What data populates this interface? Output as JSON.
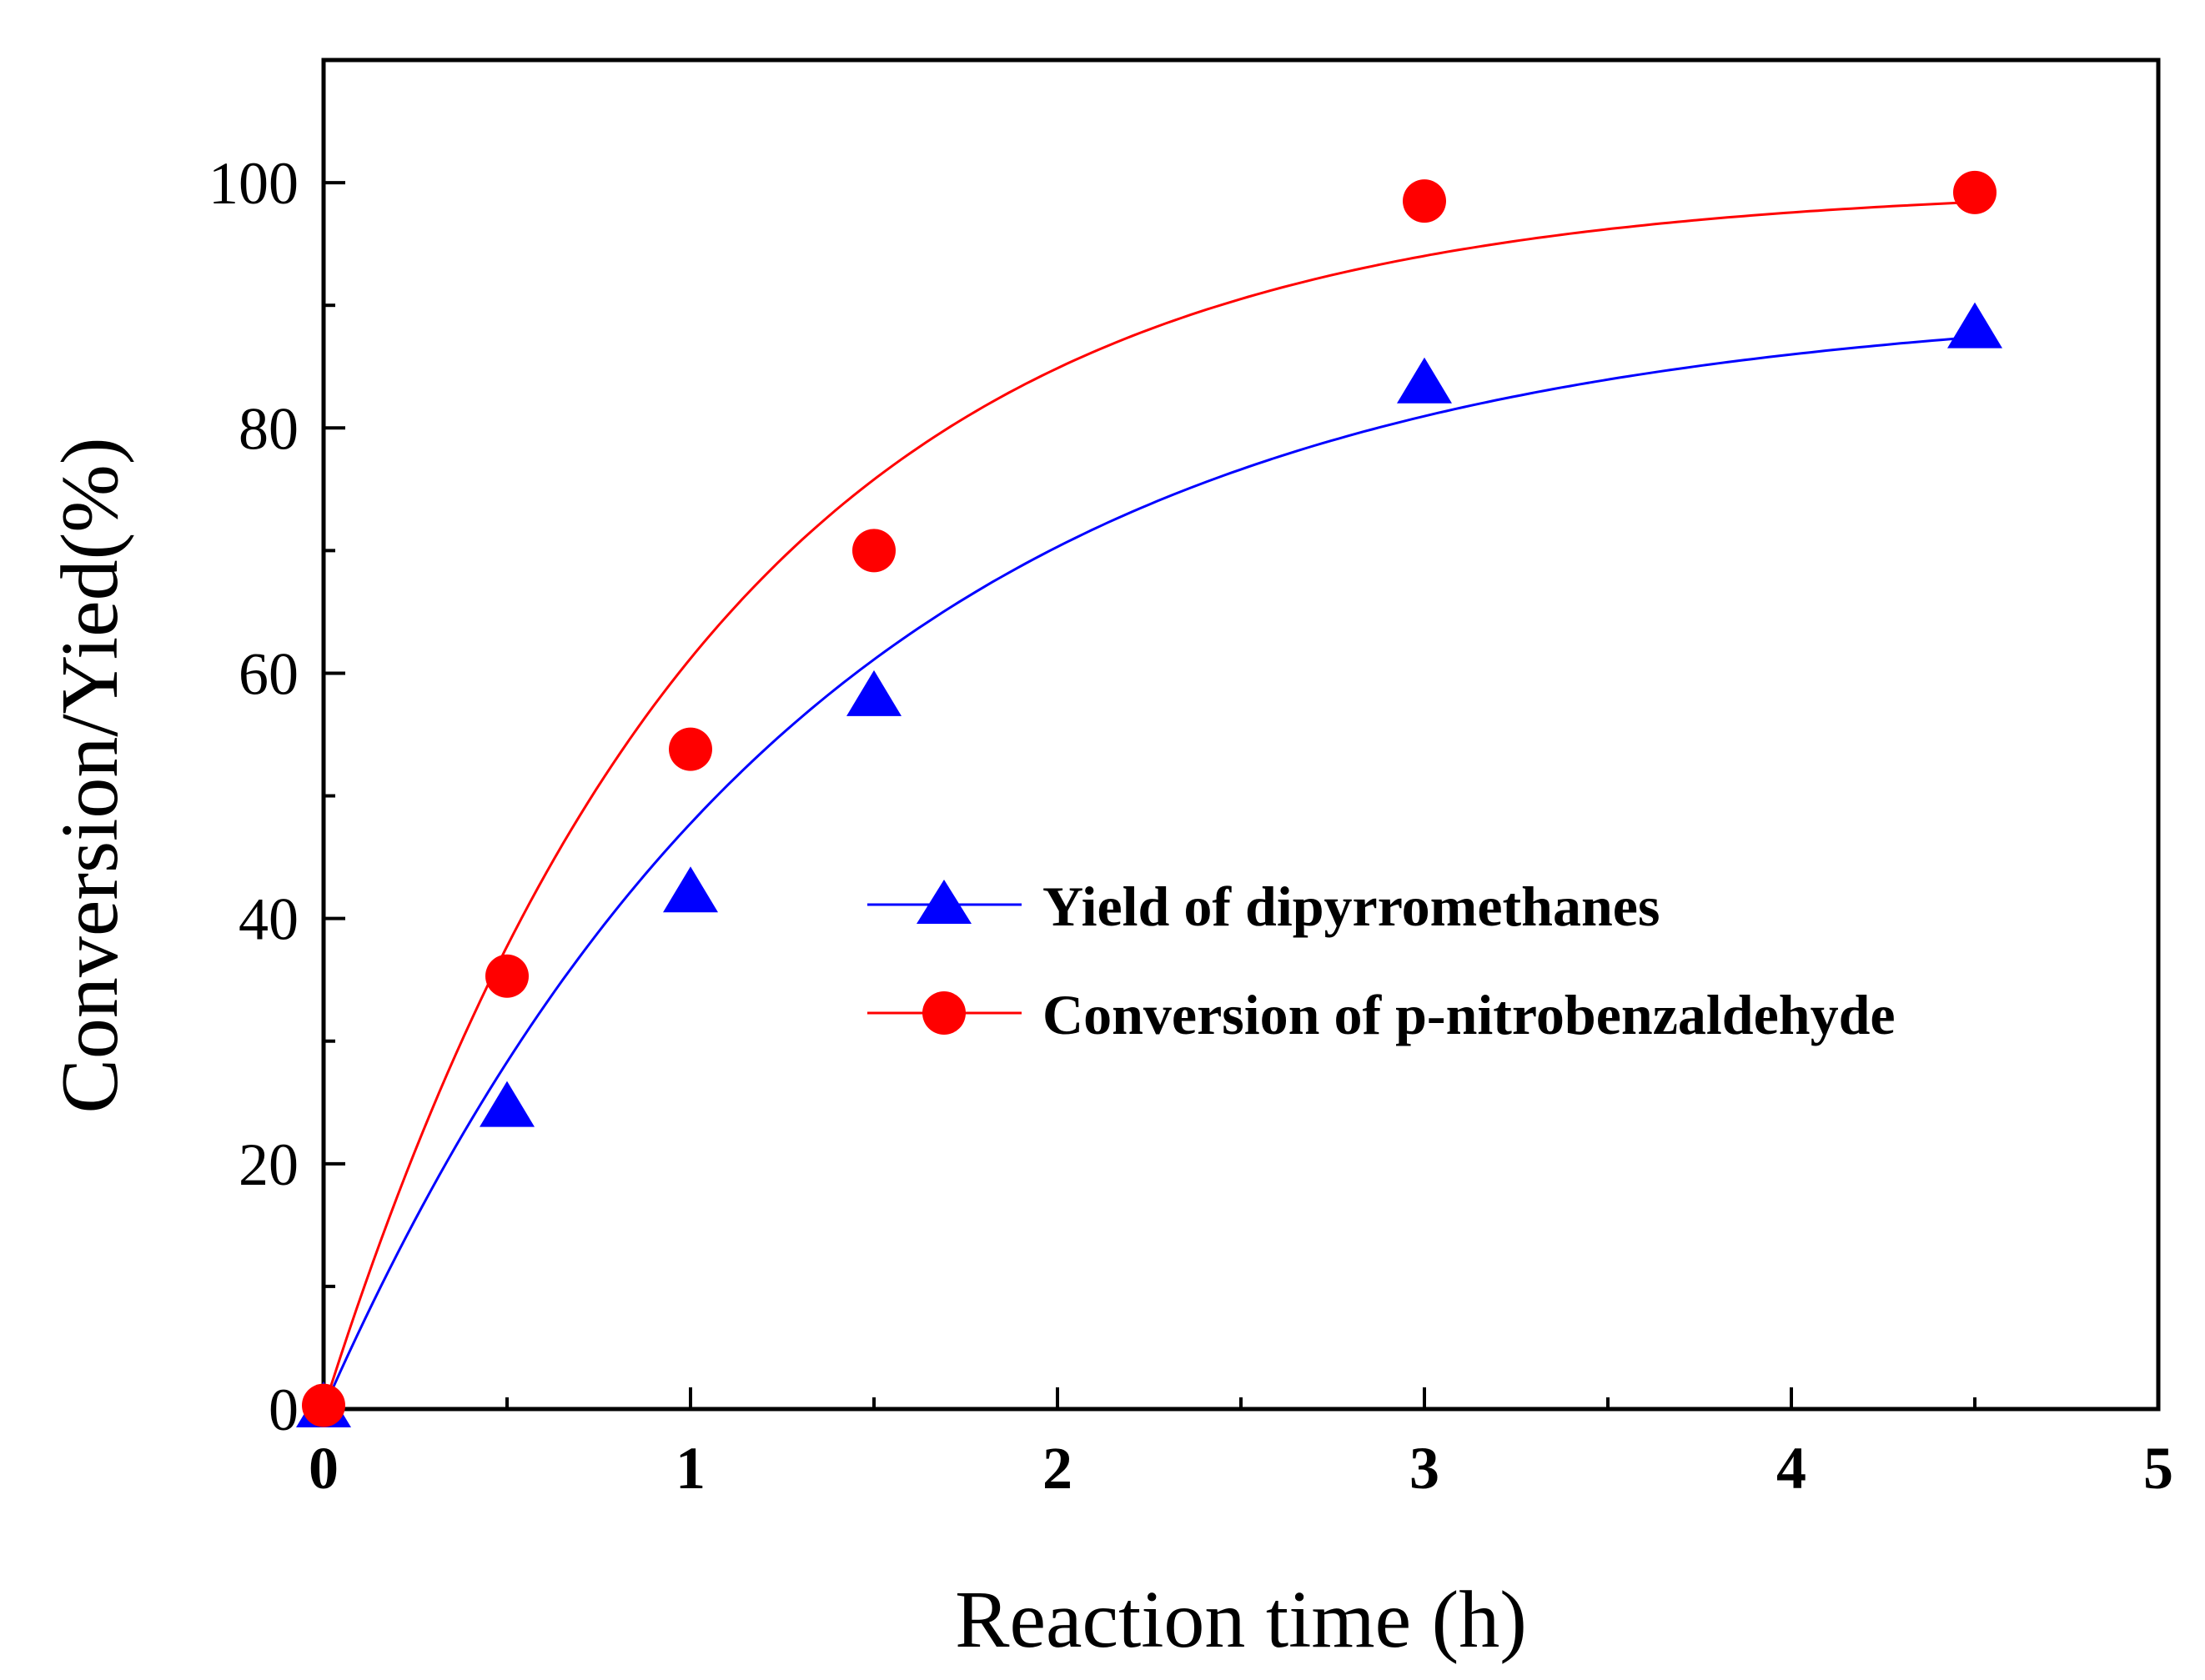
{
  "chart_data": {
    "type": "scatter",
    "title": "",
    "xlabel": "Reaction time (h)",
    "ylabel": "Conversion/Yied(%)",
    "xlim": [
      0,
      5
    ],
    "ylim": [
      0,
      110
    ],
    "x_ticks": [
      0,
      1,
      2,
      3,
      4,
      5
    ],
    "y_ticks": [
      0,
      20,
      40,
      60,
      80,
      100
    ],
    "grid": false,
    "legend_position": "center-right",
    "series": [
      {
        "name": "Yield of dipyrromethanes",
        "marker": "triangle",
        "color": "#0000ff",
        "x": [
          0,
          0.5,
          1,
          1.5,
          3,
          4.5
        ],
        "y": [
          0,
          24.5,
          42,
          58,
          83.5,
          88
        ],
        "fit": "exponential",
        "fit_params": {
          "A": 90.5,
          "k": 0.75
        }
      },
      {
        "name": "Conversion of p-nitrobenzaldehyde",
        "marker": "circle",
        "color": "#ff0000",
        "x": [
          0,
          0.5,
          1,
          1.5,
          3,
          4.5
        ],
        "y": [
          0.3,
          35.3,
          53.8,
          70,
          98.5,
          99.2
        ],
        "fit": "exponential",
        "fit_params": {
          "A": 99.8,
          "k": 0.95
        }
      }
    ]
  }
}
